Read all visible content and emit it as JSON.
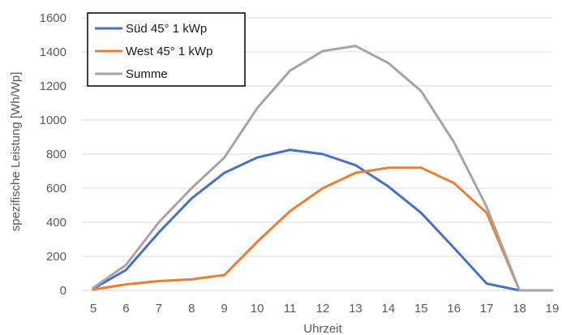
{
  "chart_data": {
    "type": "line",
    "title": "",
    "xlabel": "Uhrzeit",
    "ylabel": "spezifische Leistung [Wh/Wp]",
    "x": [
      5,
      6,
      7,
      8,
      9,
      10,
      11,
      12,
      13,
      14,
      15,
      16,
      17,
      18,
      19
    ],
    "xlim": [
      5,
      19
    ],
    "ylim": [
      0,
      1600
    ],
    "y_ticks": [
      0,
      200,
      400,
      600,
      800,
      1000,
      1200,
      1400,
      1600
    ],
    "grid": "horizontal",
    "legend_position": "top-left",
    "series": [
      {
        "name": "Süd 45° 1 kWp",
        "color": "#4472c4",
        "values": [
          10,
          120,
          340,
          540,
          690,
          780,
          825,
          800,
          735,
          610,
          455,
          250,
          40,
          0,
          null
        ]
      },
      {
        "name": "West 45° 1 kWp",
        "color": "#ed7d31",
        "values": [
          5,
          35,
          55,
          65,
          90,
          285,
          465,
          600,
          690,
          720,
          720,
          630,
          455,
          0,
          null
        ]
      },
      {
        "name": "Summe",
        "color": "#a5a5a5",
        "values": [
          15,
          150,
          400,
          600,
          780,
          1070,
          1290,
          1405,
          1435,
          1335,
          1170,
          870,
          490,
          0,
          0
        ]
      }
    ]
  }
}
